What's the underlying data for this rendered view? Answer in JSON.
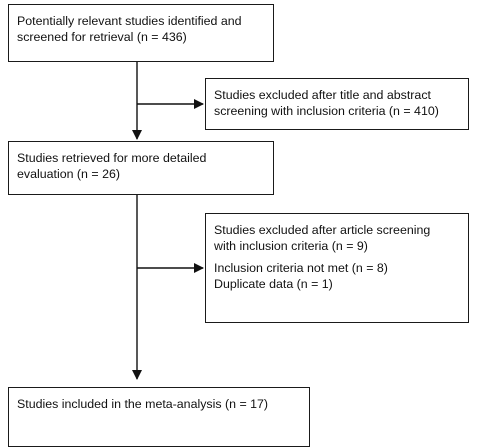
{
  "flowchart": {
    "identified": {
      "line1": "Potentially relevant studies identified and",
      "line2": "screened for retrieval (n = 436)"
    },
    "excluded_title": {
      "line1": "Studies excluded after title and abstract",
      "line2": "screening with inclusion criteria (n = 410)"
    },
    "retrieved": {
      "line1": "Studies retrieved for more detailed",
      "line2": "evaluation (n = 26)"
    },
    "excluded_article": {
      "line1": "Studies excluded after article screening",
      "line2": "with inclusion criteria (n = 9)",
      "reason1": "Inclusion criteria not met (n = 8)",
      "reason2": "Duplicate data (n = 1)"
    },
    "included": {
      "line1": "Studies included in the meta-analysis (n = 17)"
    }
  }
}
